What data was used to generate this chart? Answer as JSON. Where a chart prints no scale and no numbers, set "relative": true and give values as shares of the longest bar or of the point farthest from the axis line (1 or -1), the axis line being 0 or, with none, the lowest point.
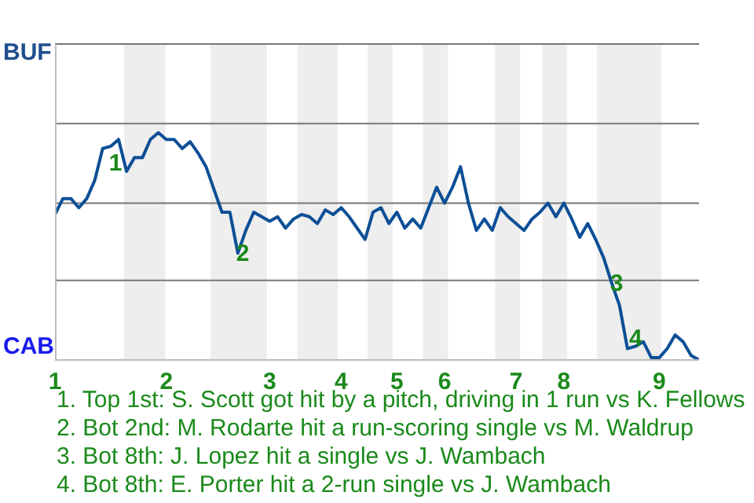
{
  "chart_data": {
    "type": "line",
    "relative": true,
    "categories": [
      "1",
      null,
      null,
      null,
      null,
      null,
      null,
      null,
      null,
      null,
      null,
      null,
      null,
      null,
      "2",
      null,
      null,
      null,
      null,
      null,
      null,
      null,
      null,
      null,
      null,
      null,
      null,
      "3",
      null,
      null,
      null,
      null,
      null,
      null,
      null,
      null,
      "4",
      null,
      null,
      null,
      null,
      null,
      null,
      "5",
      null,
      null,
      null,
      null,
      null,
      "6",
      null,
      null,
      null,
      null,
      null,
      null,
      null,
      null,
      "7",
      null,
      null,
      null,
      null,
      null,
      "8",
      null,
      null,
      null,
      null,
      null,
      null,
      null,
      null,
      null,
      null,
      null,
      "9",
      null,
      null,
      null,
      null,
      null
    ],
    "series": [
      {
        "color": "#0c4f96",
        "values": [
          0.64,
          0.71,
          0.71,
          0.67,
          0.71,
          0.79,
          0.93,
          0.94,
          0.97,
          0.83,
          0.89,
          0.89,
          0.97,
          1,
          0.97,
          0.97,
          0.93,
          0.96,
          0.91,
          0.85,
          0.75,
          0.65,
          0.65,
          0.47,
          0.57,
          0.65,
          0.63,
          0.61,
          0.63,
          0.58,
          0.62,
          0.64,
          0.63,
          0.6,
          0.66,
          0.64,
          0.67,
          0.63,
          0.58,
          0.53,
          0.65,
          0.67,
          0.6,
          0.65,
          0.58,
          0.62,
          0.58,
          0.67,
          0.76,
          0.69,
          0.76,
          0.85,
          0.69,
          0.57,
          0.62,
          0.57,
          0.67,
          0.63,
          0.6,
          0.57,
          0.62,
          0.65,
          0.69,
          0.63,
          0.69,
          0.62,
          0.54,
          0.6,
          0.53,
          0.45,
          0.34,
          0.24,
          0.05,
          0.06,
          0.08,
          0.01,
          0.01,
          0.05,
          0.11,
          0.08,
          0.02,
          0
        ]
      }
    ],
    "ref_lines": [
      {
        "axis": "y",
        "value": 0.35,
        "color": "#777777"
      },
      {
        "axis": "y",
        "value": 0.69,
        "color": "#777777"
      },
      {
        "axis": "y",
        "value": 1.04,
        "color": "#777777"
      },
      {
        "axis": "y",
        "value": 1.39,
        "color": "#777777"
      }
    ],
    "annotations": [
      "BUF",
      "CAB",
      {
        "text": "1",
        "y": 0.93
      },
      {
        "text": "2",
        "y": 0.47
      },
      {
        "text": "3",
        "y": 0.34
      },
      {
        "text": "4",
        "y": 0.05
      },
      "1. Top 1st: S. Scott got hit by a pitch, driving in 1 run vs K. Fellows",
      "2. Bot 2nd: M. Rodarte hit a run-scoring single vs M. Waldrup",
      "3. Bot 8th: J. Lopez hit a single vs J. Wambach",
      "4. Bot 8th: E. Porter hit a 2-run single vs J. Wambach"
    ],
    "marker": "none",
    "line_style": "solid",
    "legend": false
  }
}
